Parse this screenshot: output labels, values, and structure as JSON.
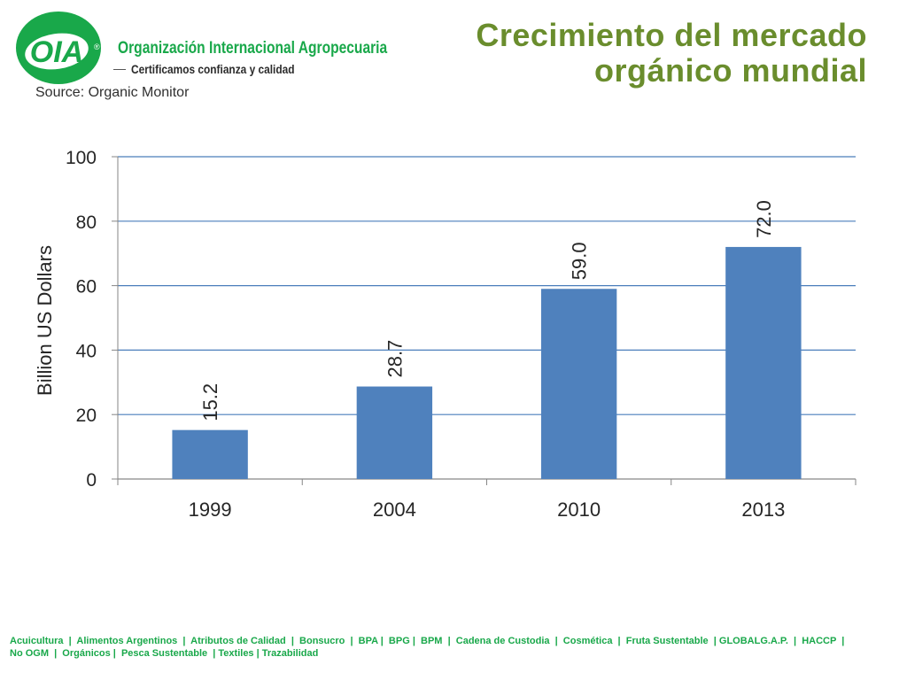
{
  "header": {
    "logo_text": "OIA",
    "logo_mark": "®",
    "org_name": "Organización Internacional Agropecuaria",
    "tagline": "Certificamos confianza y calidad",
    "source": "Source: Organic Monitor",
    "title_line1": "Crecimiento del mercado",
    "title_line2": "orgánico mundial"
  },
  "chart_data": {
    "type": "bar",
    "categories": [
      "1999",
      "2004",
      "2010",
      "2013"
    ],
    "values": [
      15.2,
      28.7,
      59.0,
      72.0
    ],
    "value_labels": [
      "15.2",
      "28.7",
      "59.0",
      "72.0"
    ],
    "ylabel": "Billion US Dollars",
    "xlabel": "",
    "ylim": [
      0,
      100
    ],
    "yticks": [
      0,
      20,
      40,
      60,
      80,
      100
    ],
    "grid": true,
    "bar_color": "#4f81bd",
    "grid_color": "#4a7ebb"
  },
  "footer": {
    "line1": "Acuicultura  |  Alimentos Argentinos  |  Atributos de Calidad  |  Bonsucro  |  BPA |  BPG |  BPM  |  Cadena de Custodia  |  Cosmética  |  Fruta Sustentable  | GLOBALG.A.P.  |  HACCP  |",
    "line2": "No OGM  |  Orgánicos |  Pesca Sustentable  | Textiles | Trazabilidad"
  },
  "colors": {
    "brand_green": "#19a84a",
    "title_green": "#6a8d2d"
  }
}
